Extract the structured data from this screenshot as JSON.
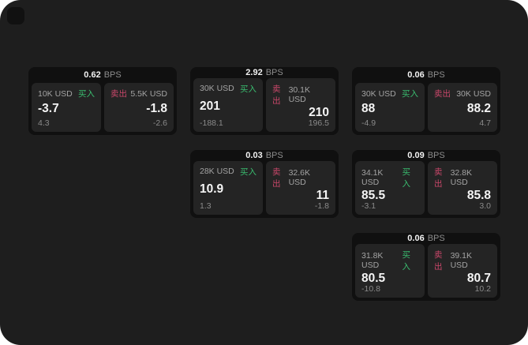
{
  "labels": {
    "bps_unit": "BPS",
    "buy": "买入",
    "sell": "卖出"
  },
  "colors": {
    "page_bg": "#1e1e1e",
    "card_bg": "#101010",
    "panel_bg": "#242424",
    "buy_accent": "#3abc6f",
    "sell_accent": "#c9476a"
  },
  "cards": [
    {
      "bps": "0.62",
      "buy": {
        "size": "10K USD",
        "price": "-3.7",
        "delta": "4.3"
      },
      "sell": {
        "size": "5.5K USD",
        "price": "-1.8",
        "delta": "-2.6"
      }
    },
    {
      "bps": "2.92",
      "buy": {
        "size": "30K USD",
        "price": "201",
        "delta": "-188.1"
      },
      "sell": {
        "size": "30.1K USD",
        "price": "210",
        "delta": "196.5"
      }
    },
    {
      "bps": "0.06",
      "buy": {
        "size": "30K USD",
        "price": "88",
        "delta": "-4.9"
      },
      "sell": {
        "size": "30K USD",
        "price": "88.2",
        "delta": "4.7"
      }
    },
    {
      "bps": "0.03",
      "buy": {
        "size": "28K USD",
        "price": "10.9",
        "delta": "1.3"
      },
      "sell": {
        "size": "32.6K USD",
        "price": "11",
        "delta": "-1.8"
      }
    },
    {
      "bps": "0.09",
      "buy": {
        "size": "34.1K USD",
        "price": "85.5",
        "delta": "-3.1"
      },
      "sell": {
        "size": "32.8K USD",
        "price": "85.8",
        "delta": "3.0"
      }
    },
    {
      "bps": "0.06",
      "buy": {
        "size": "31.8K USD",
        "price": "80.5",
        "delta": "-10.8"
      },
      "sell": {
        "size": "39.1K USD",
        "price": "80.7",
        "delta": "10.2"
      }
    }
  ]
}
